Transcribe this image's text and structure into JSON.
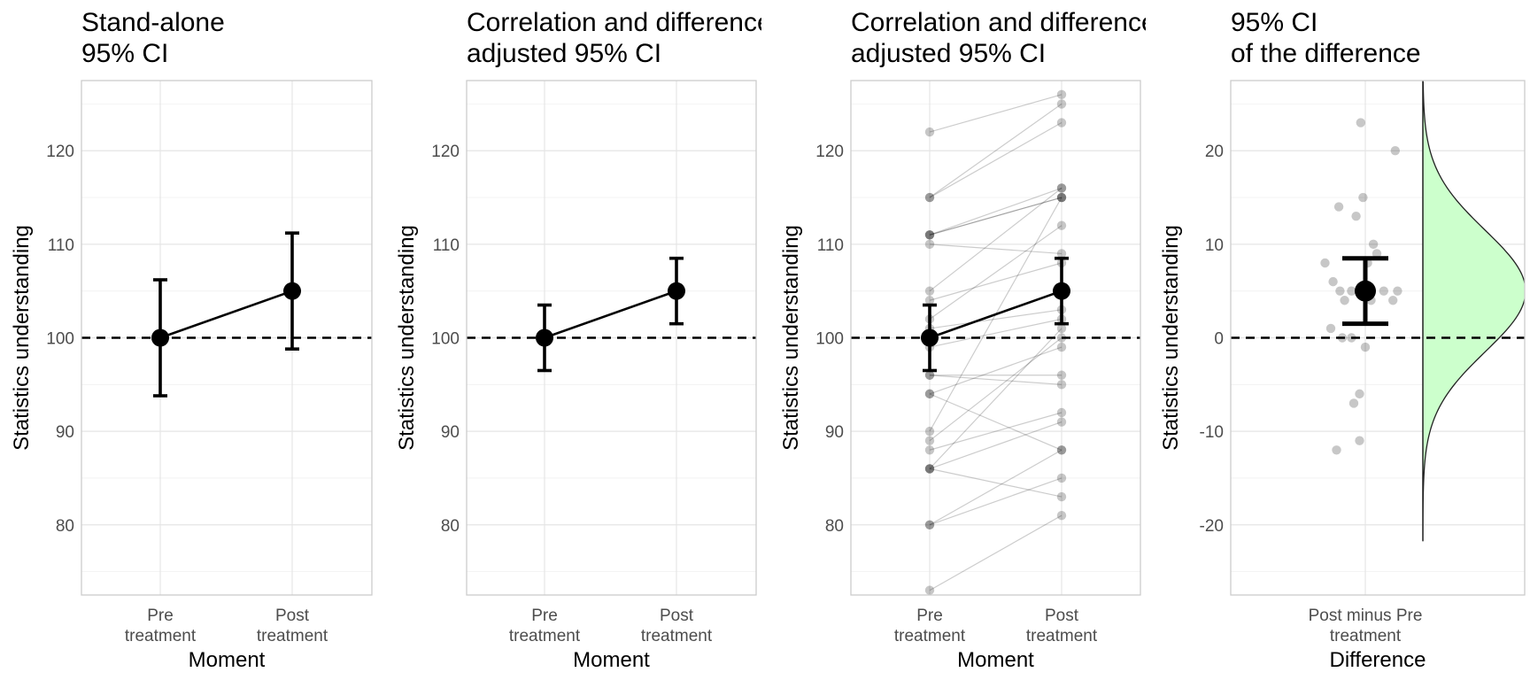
{
  "chart_data": [
    {
      "type": "line",
      "title_lines": [
        "Stand-alone",
        "95% CI"
      ],
      "xlabel": "Moment",
      "ylabel": "Statistics understanding",
      "categories": [
        [
          "Pre",
          "treatment"
        ],
        [
          "Post",
          "treatment"
        ]
      ],
      "ylim": [
        72.5,
        127.5
      ],
      "yticks": [
        80,
        90,
        100,
        110,
        120
      ],
      "reference_line": 100,
      "grid": true,
      "series": [
        {
          "x": "Pre treatment",
          "mean": 100,
          "ci": [
            93.8,
            106.2
          ]
        },
        {
          "x": "Post treatment",
          "mean": 105,
          "ci": [
            98.8,
            111.2
          ]
        }
      ],
      "points": [],
      "lines": []
    },
    {
      "type": "line",
      "title_lines": [
        "Correlation and difference",
        "adjusted 95% CI"
      ],
      "xlabel": "Moment",
      "ylabel": "Statistics understanding",
      "categories": [
        [
          "Pre",
          "treatment"
        ],
        [
          "Post",
          "treatment"
        ]
      ],
      "ylim": [
        72.5,
        127.5
      ],
      "yticks": [
        80,
        90,
        100,
        110,
        120
      ],
      "reference_line": 100,
      "grid": true,
      "series": [
        {
          "x": "Pre treatment",
          "mean": 100,
          "ci": [
            96.5,
            103.5
          ]
        },
        {
          "x": "Post treatment",
          "mean": 105,
          "ci": [
            101.5,
            108.5
          ]
        }
      ],
      "points": [],
      "lines": []
    },
    {
      "type": "scatter",
      "title_lines": [
        "Correlation and difference",
        "adjusted 95% CI"
      ],
      "xlabel": "Moment",
      "ylabel": "Statistics understanding",
      "categories": [
        [
          "Pre",
          "treatment"
        ],
        [
          "Post",
          "treatment"
        ]
      ],
      "ylim": [
        72.5,
        127.5
      ],
      "yticks": [
        80,
        90,
        100,
        110,
        120
      ],
      "reference_line": 100,
      "grid": true,
      "series": [
        {
          "x": "Pre treatment",
          "mean": 100,
          "ci": [
            96.5,
            103.5
          ]
        },
        {
          "x": "Post treatment",
          "mean": 105,
          "ci": [
            101.5,
            108.5
          ]
        }
      ],
      "lines": [
        [
          122,
          126
        ],
        [
          115,
          125
        ],
        [
          115,
          123
        ],
        [
          111,
          116
        ],
        [
          111,
          115
        ],
        [
          111,
          115
        ],
        [
          110,
          109
        ],
        [
          105,
          116
        ],
        [
          104,
          108
        ],
        [
          102,
          112
        ],
        [
          101,
          103
        ],
        [
          99,
          102
        ],
        [
          96,
          96
        ],
        [
          96,
          95
        ],
        [
          94,
          99
        ],
        [
          94,
          88
        ],
        [
          90,
          115
        ],
        [
          89,
          100
        ],
        [
          88,
          92
        ],
        [
          86,
          101
        ],
        [
          86,
          91
        ],
        [
          86,
          83
        ],
        [
          80,
          88
        ],
        [
          80,
          85
        ],
        [
          73,
          81
        ]
      ],
      "points": []
    },
    {
      "type": "scatter",
      "title_lines": [
        "95% CI",
        "of the difference"
      ],
      "xlabel": "Difference",
      "ylabel": "Statistics understanding",
      "categories": [
        [
          "Post minus Pre",
          "treatment"
        ]
      ],
      "ylim": [
        -27.5,
        27.5
      ],
      "yticks": [
        -20,
        -10,
        0,
        10,
        20
      ],
      "reference_line": 0,
      "grid": true,
      "series": [
        {
          "x": "Post minus Pre treatment",
          "mean": 5,
          "ci": [
            1.5,
            8.5
          ]
        }
      ],
      "points": [
        [
          -0.04,
          23
        ],
        [
          0.26,
          20
        ],
        [
          -0.23,
          14
        ],
        [
          -0.08,
          13
        ],
        [
          -0.02,
          15
        ],
        [
          0.07,
          10
        ],
        [
          -0.35,
          8
        ],
        [
          -0.28,
          6
        ],
        [
          -0.22,
          5
        ],
        [
          -0.18,
          4
        ],
        [
          -0.12,
          5
        ],
        [
          0.02,
          8
        ],
        [
          0.1,
          9
        ],
        [
          0.16,
          5
        ],
        [
          0.05,
          4
        ],
        [
          0.24,
          4
        ],
        [
          -0.3,
          1
        ],
        [
          -0.2,
          0
        ],
        [
          -0.12,
          0
        ],
        [
          0.0,
          -1
        ],
        [
          -0.05,
          -6
        ],
        [
          -0.1,
          -7
        ],
        [
          -0.25,
          -12
        ],
        [
          -0.05,
          -11
        ],
        [
          0.28,
          5
        ]
      ],
      "density": {
        "mean": 5,
        "sd": 6.5,
        "from": -21.7,
        "to": 27.5
      }
    }
  ]
}
